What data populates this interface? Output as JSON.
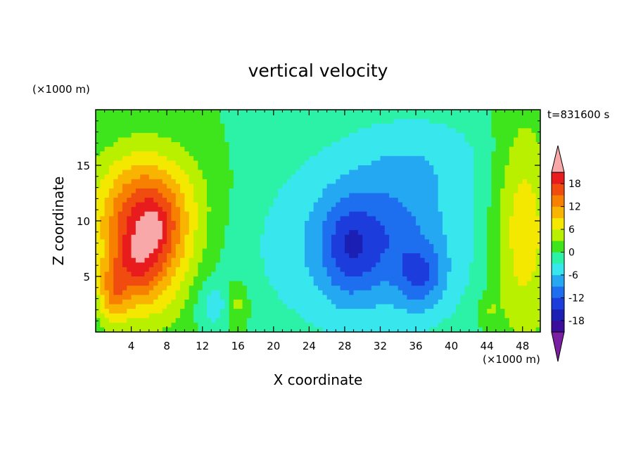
{
  "chart_data": {
    "type": "heatmap",
    "title": "vertical velocity",
    "xlabel": "X coordinate",
    "ylabel": "Z coordinate",
    "x_unit": "(×1000 m)",
    "y_unit": "(×1000 m)",
    "time_label": "t=831600 s",
    "xlim": [
      0,
      50
    ],
    "ylim": [
      0,
      20
    ],
    "x_ticks": [
      4,
      8,
      12,
      16,
      20,
      24,
      28,
      32,
      36,
      40,
      44,
      48
    ],
    "y_ticks": [
      5,
      10,
      15
    ],
    "colorbar": {
      "levels": [
        -21,
        -18,
        -15,
        -12,
        -9,
        -6,
        -3,
        0,
        3,
        6,
        9,
        12,
        15,
        18,
        21
      ],
      "tick_labels": [
        18,
        12,
        6,
        0,
        -6,
        -12,
        -18
      ],
      "colors": [
        "#7a1fa2",
        "#3a0d9a",
        "#1b1fb3",
        "#1c3cdc",
        "#1e6ff0",
        "#24a8f2",
        "#38e6ee",
        "#2cf2a8",
        "#3ee41c",
        "#b8f000",
        "#f4e800",
        "#f8b400",
        "#f88000",
        "#f04c10",
        "#e81c1c",
        "#f8a8a8"
      ],
      "extend": "both"
    },
    "features": [
      {
        "x": 5.5,
        "z": 8.0,
        "w": 17,
        "sx": 3.5,
        "sz": 4.5
      },
      {
        "x": 4.8,
        "z": 6.0,
        "w": 4,
        "sx": 1.5,
        "sz": 2.0
      },
      {
        "x": 7.0,
        "z": 9.5,
        "w": 3,
        "sx": 1.2,
        "sz": 1.5
      },
      {
        "x": 2.0,
        "z": 3.5,
        "w": 8,
        "sx": 1.2,
        "sz": 2.0
      },
      {
        "x": 6.0,
        "z": 12.0,
        "w": 6,
        "sx": 5.0,
        "sz": 3.5
      },
      {
        "x": 15.8,
        "z": 2.5,
        "w": 6,
        "sx": 1.0,
        "sz": 1.5
      },
      {
        "x": 48.0,
        "z": 9.0,
        "w": 9,
        "sx": 2.5,
        "sz": 7.0
      },
      {
        "x": 44.0,
        "z": 2.0,
        "w": 3,
        "sx": 1.0,
        "sz": 1.0
      },
      {
        "x": 13.5,
        "z": 2.5,
        "w": -5,
        "sx": 1.5,
        "sz": 1.5
      },
      {
        "x": 31.0,
        "z": 8.0,
        "w": -8,
        "sx": 9.0,
        "sz": 6.0
      },
      {
        "x": 28.5,
        "z": 7.5,
        "w": -7,
        "sx": 2.2,
        "sz": 3.0
      },
      {
        "x": 36.5,
        "z": 5.0,
        "w": -7,
        "sx": 1.8,
        "sz": 2.0
      },
      {
        "x": 33.0,
        "z": 9.0,
        "w": -3,
        "sx": 3.0,
        "sz": 3.0
      },
      {
        "x": 37.0,
        "z": 16.0,
        "w": -3,
        "sx": 6.0,
        "sz": 3.0
      }
    ]
  }
}
